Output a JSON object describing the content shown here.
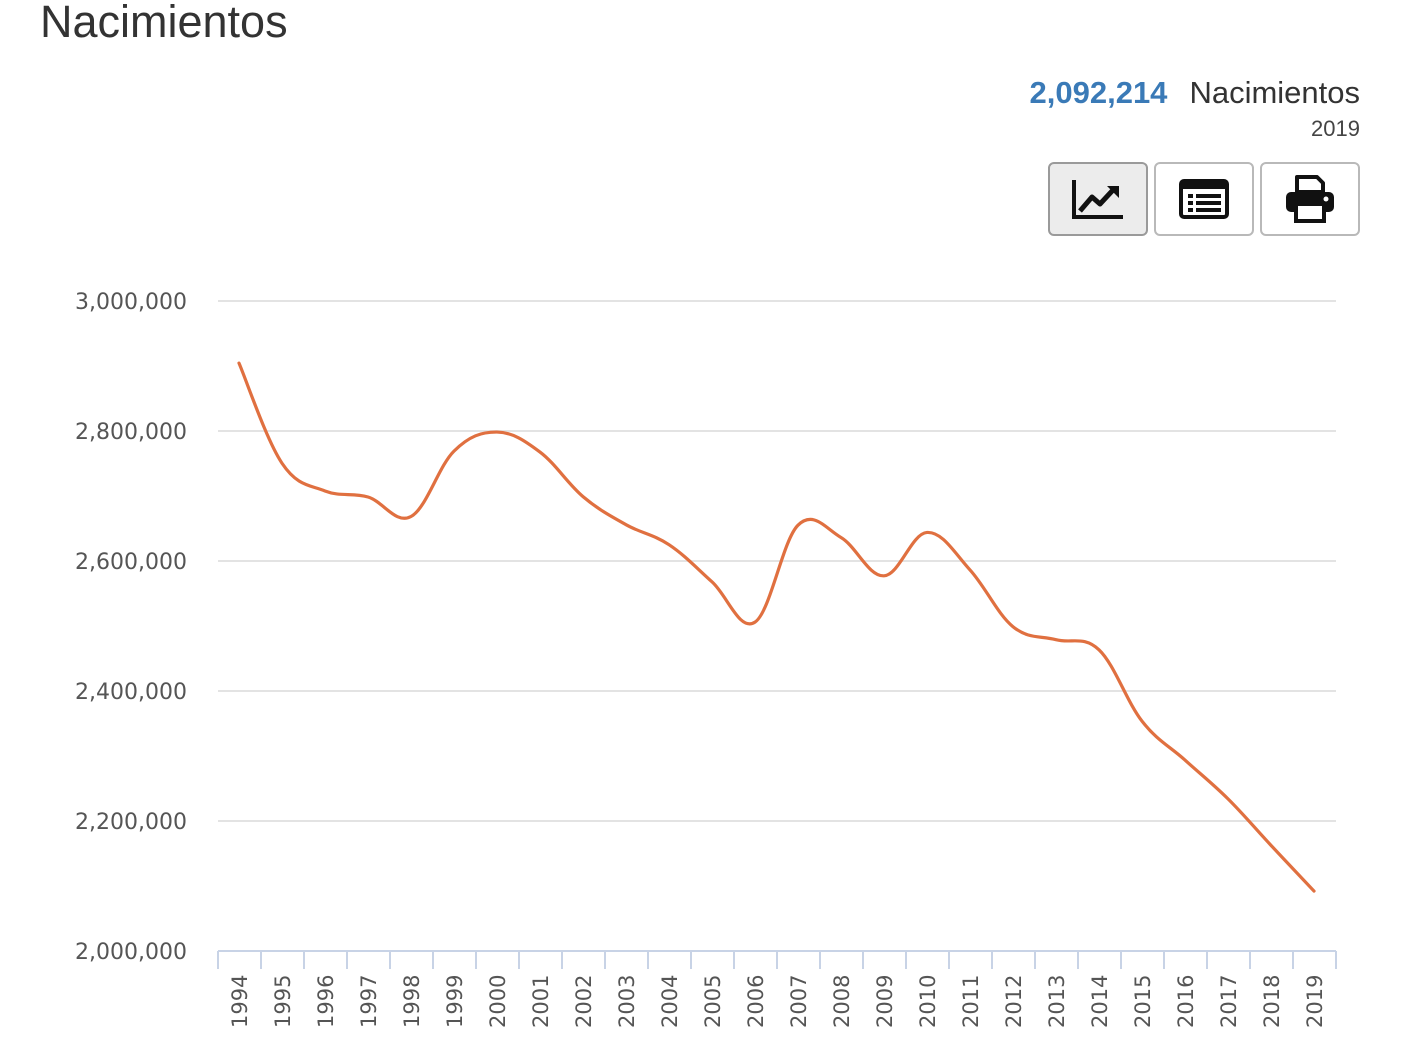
{
  "header": {
    "title": "Nacimientos"
  },
  "summary": {
    "value": "2,092,214",
    "unit": "Nacimientos",
    "year": "2019"
  },
  "toolbar": {
    "buttons": [
      {
        "icon": "line-chart-icon",
        "active": true
      },
      {
        "icon": "table-list-icon",
        "active": false
      },
      {
        "icon": "printer-icon",
        "active": false
      }
    ]
  },
  "colors": {
    "line": "#e07040",
    "accent": "#3a7ab7",
    "grid": "#e3e3e3",
    "axis": "#c8d3e6"
  },
  "chart_data": {
    "type": "line",
    "title": "",
    "xlabel": "",
    "ylabel": "",
    "ylim": [
      2000000,
      3000000
    ],
    "yticks": [
      2000000,
      2200000,
      2400000,
      2600000,
      2800000,
      3000000
    ],
    "ytick_labels": [
      "2,000,000",
      "2,200,000",
      "2,400,000",
      "2,600,000",
      "2,800,000",
      "3,000,000"
    ],
    "grid": true,
    "legend": "none",
    "categories": [
      "1994",
      "1995",
      "1996",
      "1997",
      "1998",
      "1999",
      "2000",
      "2001",
      "2002",
      "2003",
      "2004",
      "2005",
      "2006",
      "2007",
      "2008",
      "2009",
      "2010",
      "2011",
      "2012",
      "2013",
      "2014",
      "2015",
      "2016",
      "2017",
      "2018",
      "2019"
    ],
    "series": [
      {
        "values": [
          2904389,
          2750444,
          2707718,
          2698425,
          2668428,
          2769089,
          2798339,
          2767610,
          2699084,
          2655894,
          2625056,
          2567906,
          2505939,
          2655083,
          2636110,
          2577214,
          2643908,
          2586287,
          2498880,
          2478889,
          2463420,
          2353596,
          2293708,
          2234039,
          2162535,
          2092214
        ]
      }
    ]
  }
}
